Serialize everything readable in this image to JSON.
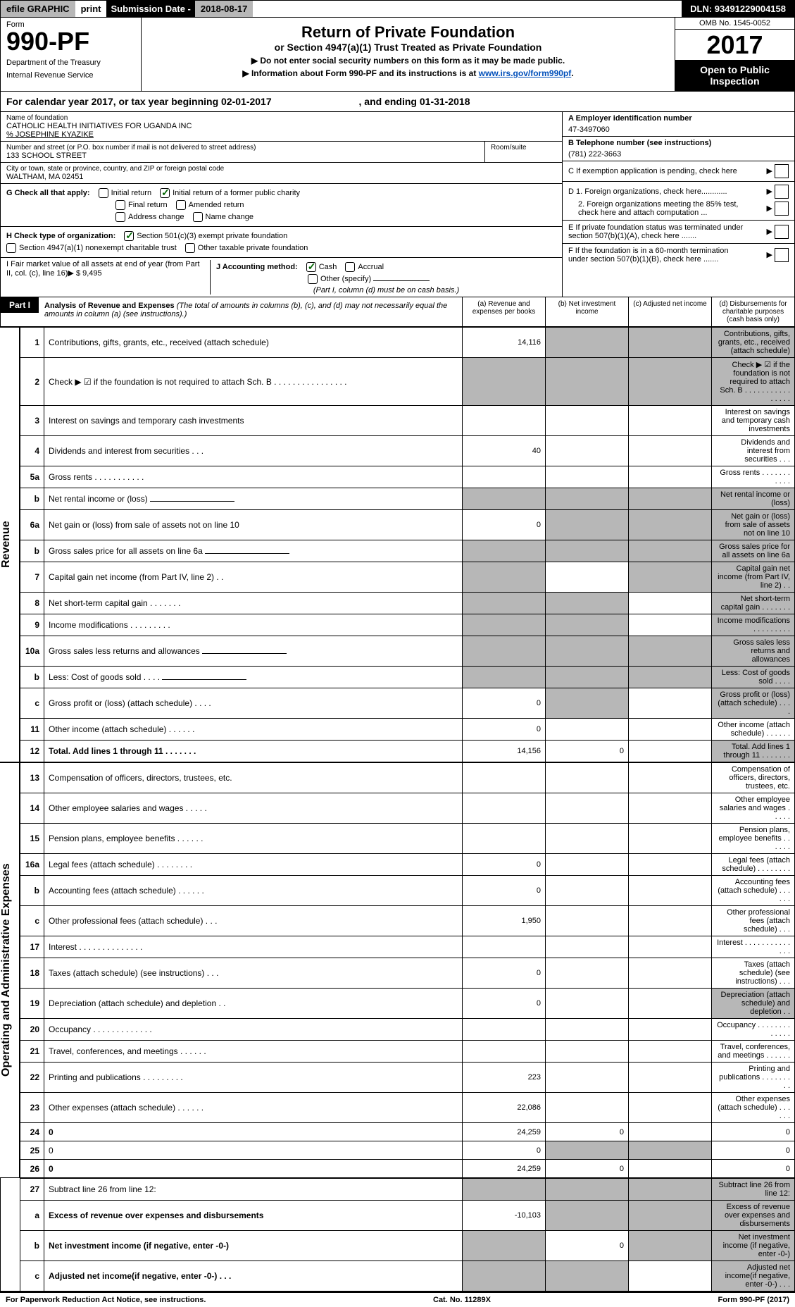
{
  "topbar": {
    "efile": "efile GRAPHIC",
    "print": "print",
    "sub_date_label": "Submission Date - ",
    "sub_date": "2018-08-17",
    "dln": "DLN: 93491229004158"
  },
  "header": {
    "form_label": "Form",
    "form_number": "990-PF",
    "dept1": "Department of the Treasury",
    "dept2": "Internal Revenue Service",
    "title": "Return of Private Foundation",
    "subtitle": "or Section 4947(a)(1) Trust Treated as Private Foundation",
    "instr1": "▶ Do not enter social security numbers on this form as it may be made public.",
    "instr2": "▶ Information about Form 990-PF and its instructions is at ",
    "instr_link": "www.irs.gov/form990pf",
    "omb": "OMB No. 1545-0052",
    "year": "2017",
    "open_public": "Open to Public Inspection"
  },
  "cal_year": {
    "text1": "For calendar year 2017, or tax year beginning ",
    "begin": "02-01-2017",
    "text2": ", and ending ",
    "end": "01-31-2018"
  },
  "info": {
    "name_label": "Name of foundation",
    "name": "CATHOLIC HEALTH INITIATIVES FOR UGANDA INC",
    "care_of": "% JOSEPHINE KYAZIKE",
    "addr_label": "Number and street (or P.O. box number if mail is not delivered to street address)",
    "addr": "133 SCHOOL STREET",
    "room_label": "Room/suite",
    "city_label": "City or town, state or province, country, and ZIP or foreign postal code",
    "city": "WALTHAM, MA  02451",
    "ein_label": "A Employer identification number",
    "ein": "47-3497060",
    "phone_label": "B Telephone number (see instructions)",
    "phone": "(781) 222-3663",
    "c_label": "C If exemption application is pending, check here",
    "d1": "D 1. Foreign organizations, check here............",
    "d2": "2. Foreign organizations meeting the 85% test, check here and attach computation ...",
    "e_label": "E  If private foundation status was terminated under section 507(b)(1)(A), check here .......",
    "f_label": "F  If the foundation is in a 60-month termination under section 507(b)(1)(B), check here .......",
    "g_label": "G Check all that apply:",
    "g_opts": [
      "Initial return",
      "Initial return of a former public charity",
      "Final return",
      "Amended return",
      "Address change",
      "Name change"
    ],
    "h_label": "H Check type of organization:",
    "h_opts": [
      "Section 501(c)(3) exempt private foundation",
      "Section 4947(a)(1) nonexempt charitable trust",
      "Other taxable private foundation"
    ],
    "i_label": "I Fair market value of all assets at end of year (from Part II, col. (c), line 16)▶",
    "i_val": "$  9,495",
    "j_label": "J Accounting method:",
    "j_opts": [
      "Cash",
      "Accrual",
      "Other (specify)"
    ],
    "j_note": "(Part I, column (d) must be on cash basis.)"
  },
  "part1": {
    "label": "Part I",
    "title": "Analysis of Revenue and Expenses",
    "note": "(The total of amounts in columns (b), (c), and (d) may not necessarily equal the amounts in column (a) (see instructions).)",
    "cols": [
      "(a)   Revenue and expenses per books",
      "(b)   Net investment income",
      "(c)   Adjusted net income",
      "(d)   Disbursements for charitable purposes (cash basis only)"
    ]
  },
  "revenue_label": "Revenue",
  "expenses_label": "Operating and Administrative Expenses",
  "rows": [
    {
      "n": "1",
      "d": "Contributions, gifts, grants, etc., received (attach schedule)",
      "a": "14,116",
      "shade": [
        "b",
        "c",
        "d"
      ]
    },
    {
      "n": "2",
      "d": "Check ▶ ☑ if the foundation is not required to attach Sch. B   .   .   .   .   .   .   .   .   .   .   .   .   .   .   .   .",
      "shade": [
        "a",
        "b",
        "c",
        "d"
      ]
    },
    {
      "n": "3",
      "d": "Interest on savings and temporary cash investments"
    },
    {
      "n": "4",
      "d": "Dividends and interest from securities     .    .    .",
      "a": "40"
    },
    {
      "n": "5a",
      "d": "Gross rents       .    .    .    .    .    .    .    .    .    .    ."
    },
    {
      "n": "b",
      "d": "Net rental income or (loss)  ",
      "shade": [
        "a",
        "b",
        "c",
        "d"
      ],
      "inline": true
    },
    {
      "n": "6a",
      "d": "Net gain or (loss) from sale of assets not on line 10",
      "a": "0",
      "shade": [
        "b",
        "c",
        "d"
      ]
    },
    {
      "n": "b",
      "d": "Gross sales price for all assets on line 6a",
      "shade": [
        "a",
        "b",
        "c",
        "d"
      ],
      "inline": true
    },
    {
      "n": "7",
      "d": "Capital gain net income (from Part IV, line 2)    .    .",
      "shade": [
        "a",
        "c",
        "d"
      ]
    },
    {
      "n": "8",
      "d": "Net short-term capital gain   .    .    .    .    .    .    .",
      "shade": [
        "a",
        "b",
        "d"
      ]
    },
    {
      "n": "9",
      "d": "Income modifications  .    .    .    .    .    .    .    .    .",
      "shade": [
        "a",
        "b",
        "d"
      ]
    },
    {
      "n": "10a",
      "d": "Gross sales less returns and allowances",
      "shade": [
        "a",
        "b",
        "c",
        "d"
      ],
      "inline": true
    },
    {
      "n": "b",
      "d": "Less: Cost of goods sold     .    .    .    .",
      "shade": [
        "a",
        "b",
        "c",
        "d"
      ],
      "inline": true
    },
    {
      "n": "c",
      "d": "Gross profit or (loss) (attach schedule)      .    .    .    .",
      "a": "0",
      "shade": [
        "b",
        "d"
      ]
    },
    {
      "n": "11",
      "d": "Other income (attach schedule)    .    .    .    .    .    .",
      "a": "0"
    },
    {
      "n": "12",
      "d": "Total. Add lines 1 through 11   .    .    .    .    .    .    .",
      "a": "14,156",
      "b": "0",
      "shade": [
        "d"
      ],
      "bold": true
    }
  ],
  "exp_rows": [
    {
      "n": "13",
      "d": "Compensation of officers, directors, trustees, etc."
    },
    {
      "n": "14",
      "d": "Other employee salaries and wages   .    .    .    .    ."
    },
    {
      "n": "15",
      "d": "Pension plans, employee benefits  .    .    .    .    .    ."
    },
    {
      "n": "16a",
      "d": "Legal fees (attach schedule) .    .    .    .    .    .    .    .",
      "a": "0"
    },
    {
      "n": "b",
      "d": "Accounting fees (attach schedule)  .    .    .    .    .    .",
      "a": "0"
    },
    {
      "n": "c",
      "d": "Other professional fees (attach schedule)     .    .    .",
      "a": "1,950"
    },
    {
      "n": "17",
      "d": "Interest  .    .    .    .    .    .    .    .    .    .    .    .    .    ."
    },
    {
      "n": "18",
      "d": "Taxes (attach schedule) (see instructions)      .    .    .",
      "a": "0"
    },
    {
      "n": "19",
      "d": "Depreciation (attach schedule) and depletion    .    .",
      "a": "0",
      "shade": [
        "d"
      ]
    },
    {
      "n": "20",
      "d": "Occupancy  .    .    .    .    .    .    .    .    .    .    .    .    ."
    },
    {
      "n": "21",
      "d": "Travel, conferences, and meetings  .    .    .    .    .    ."
    },
    {
      "n": "22",
      "d": "Printing and publications  .    .    .    .    .    .    .    .    .",
      "a": "223"
    },
    {
      "n": "23",
      "d": "Other expenses (attach schedule)  .    .    .    .    .    .",
      "a": "22,086"
    },
    {
      "n": "24",
      "d": "0",
      "a": "24,259",
      "b": "0",
      "bold": true
    },
    {
      "n": "25",
      "d": "0",
      "a": "0",
      "shade": [
        "b",
        "c"
      ]
    },
    {
      "n": "26",
      "d": "0",
      "a": "24,259",
      "b": "0",
      "bold": true
    }
  ],
  "bottom_rows": [
    {
      "n": "27",
      "d": "Subtract line 26 from line 12:",
      "shade": [
        "a",
        "b",
        "c",
        "d"
      ]
    },
    {
      "n": "a",
      "d": "Excess of revenue over expenses and disbursements",
      "a": "-10,103",
      "shade": [
        "b",
        "c",
        "d"
      ],
      "bold": true
    },
    {
      "n": "b",
      "d": "Net investment income (if negative, enter -0-)",
      "b": "0",
      "shade": [
        "a",
        "c",
        "d"
      ],
      "bold": true
    },
    {
      "n": "c",
      "d": "Adjusted net income(if negative, enter -0-)    .    .    .",
      "shade": [
        "a",
        "b",
        "d"
      ],
      "bold": true
    }
  ],
  "footer": {
    "left": "For Paperwork Reduction Act Notice, see instructions.",
    "mid": "Cat. No. 11289X",
    "right": "Form 990-PF (2017)"
  }
}
